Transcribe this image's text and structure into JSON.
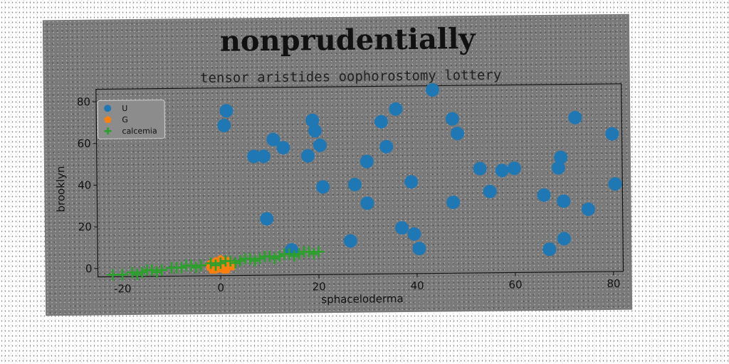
{
  "chart_data": {
    "type": "scatter",
    "title": "nonprudentially",
    "subtitle": "tensor aristides oophorostomy lottery",
    "xlabel": "sphaceloderma",
    "ylabel": "brooklyn",
    "xlim": [
      -25,
      82
    ],
    "ylim": [
      -4,
      86
    ],
    "xticks": [
      -20,
      0,
      20,
      40,
      60,
      80
    ],
    "yticks": [
      0,
      20,
      40,
      60,
      80
    ],
    "legend_position": "top-left",
    "grid": false,
    "series": [
      {
        "name": "U",
        "marker": "circle",
        "color": "#1f77b4",
        "points": [
          [
            1.5,
            75
          ],
          [
            1,
            68
          ],
          [
            7,
            53
          ],
          [
            9,
            53
          ],
          [
            11,
            61
          ],
          [
            13,
            57
          ],
          [
            9.5,
            23
          ],
          [
            14.5,
            8
          ],
          [
            19,
            70
          ],
          [
            19.5,
            65
          ],
          [
            18,
            53
          ],
          [
            20.5,
            58
          ],
          [
            21,
            38
          ],
          [
            26.5,
            12
          ],
          [
            27.5,
            39
          ],
          [
            30,
            50
          ],
          [
            30,
            30
          ],
          [
            33,
            69
          ],
          [
            34,
            57
          ],
          [
            36,
            75
          ],
          [
            37,
            18
          ],
          [
            39,
            40
          ],
          [
            39.5,
            15
          ],
          [
            40.5,
            8
          ],
          [
            43.5,
            84
          ],
          [
            47.5,
            70
          ],
          [
            48.5,
            63
          ],
          [
            47.5,
            30
          ],
          [
            53,
            46
          ],
          [
            55,
            35
          ],
          [
            57.5,
            45
          ],
          [
            60,
            46
          ],
          [
            66,
            33
          ],
          [
            67,
            7
          ],
          [
            69,
            46
          ],
          [
            69.5,
            51
          ],
          [
            70,
            30
          ],
          [
            70,
            12
          ],
          [
            72.5,
            70
          ],
          [
            75,
            26
          ],
          [
            80,
            62
          ],
          [
            80.5,
            38
          ]
        ]
      },
      {
        "name": "G",
        "marker": "pentagon",
        "color": "#ff7f0e",
        "points": [
          [
            -2,
            1
          ],
          [
            -1,
            2
          ],
          [
            0,
            0
          ],
          [
            0.5,
            1.5
          ],
          [
            1,
            0.5
          ],
          [
            1.5,
            2
          ],
          [
            -1.5,
            -0.5
          ],
          [
            0,
            3
          ],
          [
            2,
            1
          ],
          [
            -0.5,
            1
          ],
          [
            1,
            -0.5
          ],
          [
            -1,
            0
          ],
          [
            0.3,
            0.8
          ]
        ]
      },
      {
        "name": "calcemia",
        "marker": "plus",
        "color": "#2ca02c",
        "points": [
          [
            -22,
            -3
          ],
          [
            -20,
            -3
          ],
          [
            -18,
            -2
          ],
          [
            -16,
            -2
          ],
          [
            -14,
            -1
          ],
          [
            -12,
            -1
          ],
          [
            -10,
            0
          ],
          [
            -8,
            0
          ],
          [
            -6,
            1
          ],
          [
            -4,
            1
          ],
          [
            -2,
            2
          ],
          [
            0,
            2
          ],
          [
            2,
            3
          ],
          [
            4,
            3
          ],
          [
            6,
            4
          ],
          [
            8,
            4
          ],
          [
            10,
            5
          ],
          [
            12,
            5
          ],
          [
            14,
            6
          ],
          [
            16,
            6
          ],
          [
            18,
            7
          ],
          [
            20,
            7
          ],
          [
            -17,
            -3
          ],
          [
            -13,
            -2
          ],
          [
            -9,
            0
          ],
          [
            -5,
            0
          ],
          [
            -1,
            1
          ],
          [
            3,
            2
          ],
          [
            7,
            3
          ],
          [
            11,
            4
          ],
          [
            15,
            5
          ],
          [
            19,
            6
          ],
          [
            -15,
            -1
          ],
          [
            -7,
            1
          ],
          [
            1,
            3
          ],
          [
            9,
            5
          ],
          [
            17,
            7
          ],
          [
            5,
            4
          ],
          [
            13,
            6
          ]
        ]
      }
    ]
  }
}
